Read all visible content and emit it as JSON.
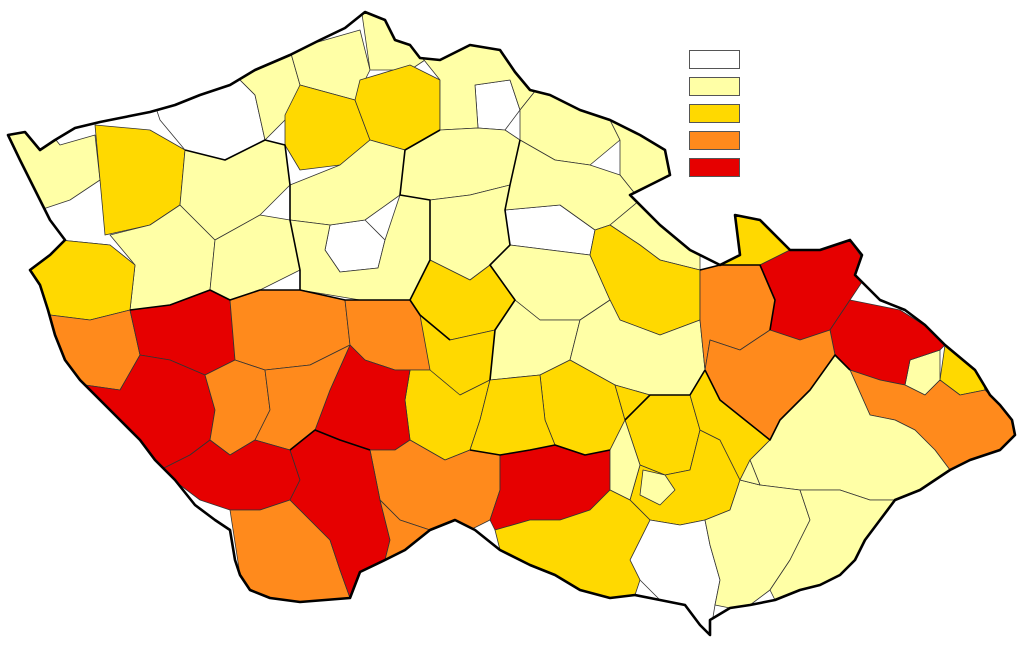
{
  "legend": {
    "classes": [
      {
        "color": "#ffffff"
      },
      {
        "color": "#ffffa6"
      },
      {
        "color": "#ffd900"
      },
      {
        "color": "#ff8a1c"
      },
      {
        "color": "#e60000"
      }
    ]
  },
  "districts": [
    {
      "id": "d01",
      "class": 1
    },
    {
      "id": "d02",
      "class": 0
    },
    {
      "id": "d03",
      "class": 1
    },
    {
      "id": "d04",
      "class": 2
    },
    {
      "id": "d05",
      "class": 1
    },
    {
      "id": "d06",
      "class": 2
    },
    {
      "id": "d07",
      "class": 1
    },
    {
      "id": "d08",
      "class": 2
    },
    {
      "id": "d09",
      "class": 0
    },
    {
      "id": "d10",
      "class": 1
    },
    {
      "id": "d11",
      "class": 1
    },
    {
      "id": "d12",
      "class": 1
    },
    {
      "id": "d13",
      "class": 2
    },
    {
      "id": "d14",
      "class": 1
    },
    {
      "id": "d15",
      "class": 0
    },
    {
      "id": "d16",
      "class": 1
    },
    {
      "id": "d17",
      "class": 1
    },
    {
      "id": "d18",
      "class": 1
    },
    {
      "id": "d19",
      "class": 0
    },
    {
      "id": "d20",
      "class": 1
    },
    {
      "id": "d21",
      "class": 1
    },
    {
      "id": "d22",
      "class": 2
    },
    {
      "id": "d23",
      "class": 1
    },
    {
      "id": "d24",
      "class": 2
    },
    {
      "id": "d25",
      "class": 1
    },
    {
      "id": "d26",
      "class": 1
    },
    {
      "id": "d27",
      "class": 2
    },
    {
      "id": "d28",
      "class": 3
    },
    {
      "id": "d29",
      "class": 4
    },
    {
      "id": "d30",
      "class": 3
    },
    {
      "id": "d31",
      "class": 3
    },
    {
      "id": "d32",
      "class": 2
    },
    {
      "id": "d33",
      "class": 1
    },
    {
      "id": "d34",
      "class": 1
    },
    {
      "id": "d35",
      "class": 3
    },
    {
      "id": "d36",
      "class": 4
    },
    {
      "id": "d37",
      "class": 2
    },
    {
      "id": "d38",
      "class": 1
    },
    {
      "id": "d39",
      "class": 4
    },
    {
      "id": "d40",
      "class": 2
    },
    {
      "id": "d41",
      "class": 4
    },
    {
      "id": "d42",
      "class": 3
    },
    {
      "id": "d43",
      "class": 3
    },
    {
      "id": "d44",
      "class": 4
    },
    {
      "id": "d45",
      "class": 3
    },
    {
      "id": "d46",
      "class": 3
    },
    {
      "id": "d47",
      "class": 4
    },
    {
      "id": "d48",
      "class": 3
    },
    {
      "id": "d49",
      "class": 4
    },
    {
      "id": "d50",
      "class": 2
    },
    {
      "id": "d51",
      "class": 2
    },
    {
      "id": "d52",
      "class": 2
    },
    {
      "id": "d53",
      "class": 1
    },
    {
      "id": "d54",
      "class": 4
    },
    {
      "id": "d55",
      "class": 2
    },
    {
      "id": "d56",
      "class": 0
    },
    {
      "id": "d57",
      "class": 1
    },
    {
      "id": "d58",
      "class": 1
    },
    {
      "id": "d59",
      "class": 2
    },
    {
      "id": "d60",
      "class": 1
    },
    {
      "id": "d61",
      "class": 1
    },
    {
      "id": "d62",
      "class": 1
    },
    {
      "id": "d63",
      "class": 1
    },
    {
      "id": "d64",
      "class": 1
    },
    {
      "id": "d65",
      "class": 1
    },
    {
      "id": "d66",
      "class": 1
    },
    {
      "id": "d67",
      "class": 3
    },
    {
      "id": "d68",
      "class": 3
    },
    {
      "id": "d69",
      "class": 2
    },
    {
      "id": "d70",
      "class": 1
    },
    {
      "id": "d71",
      "class": 1
    },
    {
      "id": "d72",
      "class": 1
    }
  ]
}
